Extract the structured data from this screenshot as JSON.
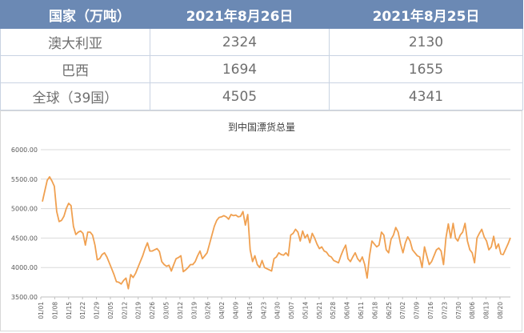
{
  "table": {
    "headers": [
      "国家（万吨）",
      "2021年8月26日",
      "2021年8月25日"
    ],
    "rows": [
      {
        "name": "澳大利亚",
        "v1": "2324",
        "v2": "2130"
      },
      {
        "name": "巴西",
        "v1": "1694",
        "v2": "1655"
      },
      {
        "name": "全球（39国）",
        "v1": "4505",
        "v2": "4341"
      }
    ]
  },
  "colors": {
    "header_bg": "#6b89b4",
    "line": "#f0a050",
    "grid": "#d9d9d9"
  },
  "chart_data": {
    "type": "line",
    "title": "到中国漂货总量",
    "xlabel": "",
    "ylabel": "",
    "ylim": [
      3500,
      6000
    ],
    "yticks": [
      "3500.00",
      "4000.00",
      "4500.00",
      "5000.00",
      "5500.00",
      "6000.00"
    ],
    "xticks": [
      "01/01",
      "01/08",
      "01/15",
      "01/22",
      "01/29",
      "02/05",
      "02/12",
      "02/19",
      "02/26",
      "03/05",
      "03/12",
      "03/19",
      "03/26",
      "04/02",
      "04/09",
      "04/16",
      "04/23",
      "04/30",
      "05/07",
      "05/14",
      "05/21",
      "05/28",
      "06/04",
      "06/11",
      "06/18",
      "06/25",
      "07/02",
      "07/09",
      "07/16",
      "07/23",
      "07/30",
      "08/06",
      "08/13",
      "08/20"
    ],
    "grid": true,
    "legend": "none",
    "series": [
      {
        "values": [
          5120,
          5300,
          5480,
          5540,
          5470,
          5380,
          4950,
          4780,
          4800,
          4870,
          5000,
          5090,
          5050,
          4700,
          4560,
          4600,
          4620,
          4580,
          4380,
          4600,
          4600,
          4550,
          4380,
          4130,
          4150,
          4220,
          4250,
          4180,
          4080,
          3980,
          3880,
          3760,
          3750,
          3720,
          3780,
          3820,
          3640,
          3880,
          3830,
          3900,
          4000,
          4100,
          4200,
          4320,
          4420,
          4280,
          4280,
          4300,
          4320,
          4270,
          4100,
          4050,
          4020,
          4040,
          3940,
          4050,
          4150,
          4170,
          4200,
          3930,
          3960,
          4000,
          4050,
          4050,
          4100,
          4200,
          4280,
          4150,
          4200,
          4250,
          4400,
          4550,
          4700,
          4800,
          4850,
          4860,
          4880,
          4860,
          4820,
          4900,
          4880,
          4890,
          4860,
          4870,
          4950,
          4720,
          4900,
          4300,
          4100,
          4200,
          4050,
          4000,
          4120,
          4000,
          3980,
          3960,
          3940,
          4150,
          4180,
          4250,
          4220,
          4210,
          4250,
          4200,
          4550,
          4580,
          4650,
          4600,
          4450,
          4620,
          4500,
          4560,
          4420,
          4580,
          4500,
          4400,
          4320,
          4350,
          4280,
          4260,
          4200,
          4180,
          4120,
          4100,
          4080,
          4200,
          4300,
          4380,
          4150,
          4100,
          4180,
          4250,
          4150,
          4100,
          4180,
          4050,
          3820,
          4200,
          4450,
          4400,
          4350,
          4380,
          4600,
          4550,
          4300,
          4250,
          4480,
          4550,
          4680,
          4600,
          4400,
          4250,
          4420,
          4520,
          4450,
          4300,
          4250,
          4200,
          4180,
          4000,
          4350,
          4200,
          4050,
          4100,
          4200,
          4300,
          4330,
          4280,
          4050,
          4500,
          4740,
          4500,
          4750,
          4500,
          4450,
          4550,
          4600,
          4750,
          4450,
          4300,
          4250,
          4080,
          4500,
          4580,
          4650,
          4520,
          4450,
          4300,
          4350,
          4530,
          4320,
          4400,
          4230,
          4220,
          4310,
          4400,
          4505
        ]
      }
    ]
  }
}
